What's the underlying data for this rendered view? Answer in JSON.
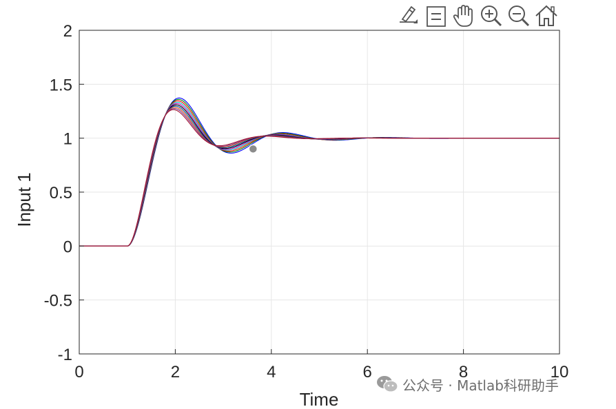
{
  "toolbar": {
    "icons": [
      "edit-data-icon",
      "legend-icon",
      "pan-hand-icon",
      "zoom-in-icon",
      "zoom-out-icon",
      "home-icon"
    ]
  },
  "watermark": {
    "text": "公众号 · Matlab科研助手",
    "icon": "wechat-logo"
  },
  "chart_data": {
    "type": "line",
    "title": "",
    "xlabel": "Time",
    "ylabel": "Input 1",
    "xlim": [
      0,
      10
    ],
    "ylim": [
      -1,
      2
    ],
    "xticks": [
      "0",
      "2",
      "4",
      "6",
      "8",
      "10"
    ],
    "yticks": [
      "2",
      "1.5",
      "1",
      "0.5",
      "0",
      "-0.5",
      "-1"
    ],
    "grid": true,
    "legend": "none",
    "colors": [
      "#0000ff",
      "#007f00",
      "#ff0000",
      "#00bfbf",
      "#bf00bf",
      "#000000",
      "#0050a0",
      "#d95319",
      "#7e2f8e",
      "#a2142f"
    ],
    "response_model": {
      "delay": 1.0,
      "final_value": 1.0,
      "cases": [
        {
          "zeta": 0.3,
          "wn": 3.05
        },
        {
          "zeta": 0.31,
          "wn": 3.1
        },
        {
          "zeta": 0.32,
          "wn": 3.15
        },
        {
          "zeta": 0.33,
          "wn": 3.2
        },
        {
          "zeta": 0.34,
          "wn": 3.25
        },
        {
          "zeta": 0.35,
          "wn": 3.3
        },
        {
          "zeta": 0.36,
          "wn": 3.36
        },
        {
          "zeta": 0.37,
          "wn": 3.42
        },
        {
          "zeta": 0.38,
          "wn": 3.48
        },
        {
          "zeta": 0.39,
          "wn": 3.55
        }
      ]
    },
    "marker": {
      "x": 3.62,
      "y": 0.9,
      "color": "#8c8c8c"
    }
  }
}
